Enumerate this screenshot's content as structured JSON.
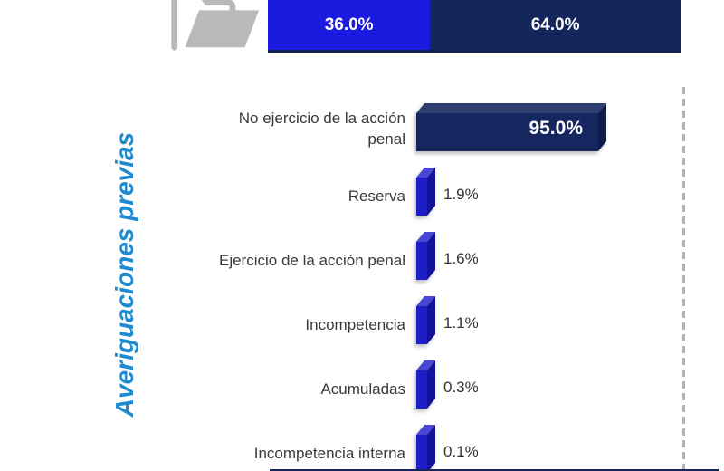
{
  "chart_data": [
    {
      "type": "bar",
      "subtype": "horizontal-stacked",
      "xlim": [
        0,
        100
      ],
      "series": [
        {
          "label": "36.0%",
          "value": 36.0,
          "color": "#1b1bdf"
        },
        {
          "label": "64.0%",
          "value": 64.0,
          "color": "#15265d"
        }
      ],
      "icon": "open-folder-icon"
    },
    {
      "type": "bar",
      "orientation": "horizontal",
      "group_title": "Averiguaciones previas",
      "categories": [
        "No ejercicio de la acción\npenal",
        "Reserva",
        "Ejercicio de la acción penal",
        "Incompetencia",
        "Acumuladas",
        "Incompetencia interna"
      ],
      "values": [
        95.0,
        1.9,
        1.6,
        1.1,
        0.3,
        0.1
      ],
      "value_labels": [
        "95.0%",
        "1.9%",
        "1.6%",
        "1.1%",
        "0.3%",
        "0.1%"
      ],
      "bar_colors": {
        "large": "#16265e",
        "small": "#1e1ec8"
      },
      "style": {
        "title_color": "#1e8bd0",
        "label_color": "#3a3a3a",
        "dashed_line_color": "#b3b3b3",
        "baseline_color": "#15265d",
        "folder_icon_color": "#b9b9b9"
      }
    }
  ]
}
